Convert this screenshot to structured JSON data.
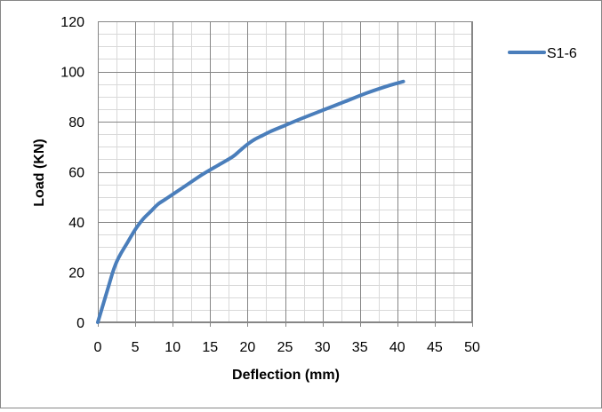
{
  "chart_data": {
    "type": "line",
    "title": "",
    "xlabel": "Deflection (mm)",
    "ylabel": "Load (KN)",
    "xlim": [
      0,
      50
    ],
    "ylim": [
      0,
      120
    ],
    "x_ticks": [
      0,
      5,
      10,
      15,
      20,
      25,
      30,
      35,
      40,
      45,
      50
    ],
    "y_ticks": [
      0,
      20,
      40,
      60,
      80,
      100,
      120
    ],
    "x_tick_labels": [
      "0",
      "5",
      "10",
      "15",
      "20",
      "25",
      "30",
      "35",
      "40",
      "45",
      "50"
    ],
    "y_tick_labels": [
      "0",
      "20",
      "40",
      "60",
      "80",
      "100",
      "120"
    ],
    "x_minor_step": 2.5,
    "y_minor_step": 5,
    "grid": true,
    "legend_position": "right-top",
    "series": [
      {
        "name": "S1-6",
        "color": "#4a7ebb",
        "x": [
          0,
          0.5,
          1,
          1.5,
          2,
          2.5,
          3,
          4,
          5,
          6,
          7,
          8,
          9,
          10,
          12,
          14,
          16,
          18,
          19,
          20,
          21,
          22,
          23,
          25,
          27,
          30,
          33,
          36,
          39,
          40.8
        ],
        "y": [
          0,
          5,
          10,
          15,
          20,
          24,
          27,
          32,
          37,
          41,
          44,
          47,
          49,
          51,
          55,
          59,
          62.5,
          66,
          68.5,
          71,
          73,
          74.5,
          76,
          78.5,
          81,
          84.5,
          88,
          91.5,
          94.5,
          96
        ]
      }
    ]
  }
}
